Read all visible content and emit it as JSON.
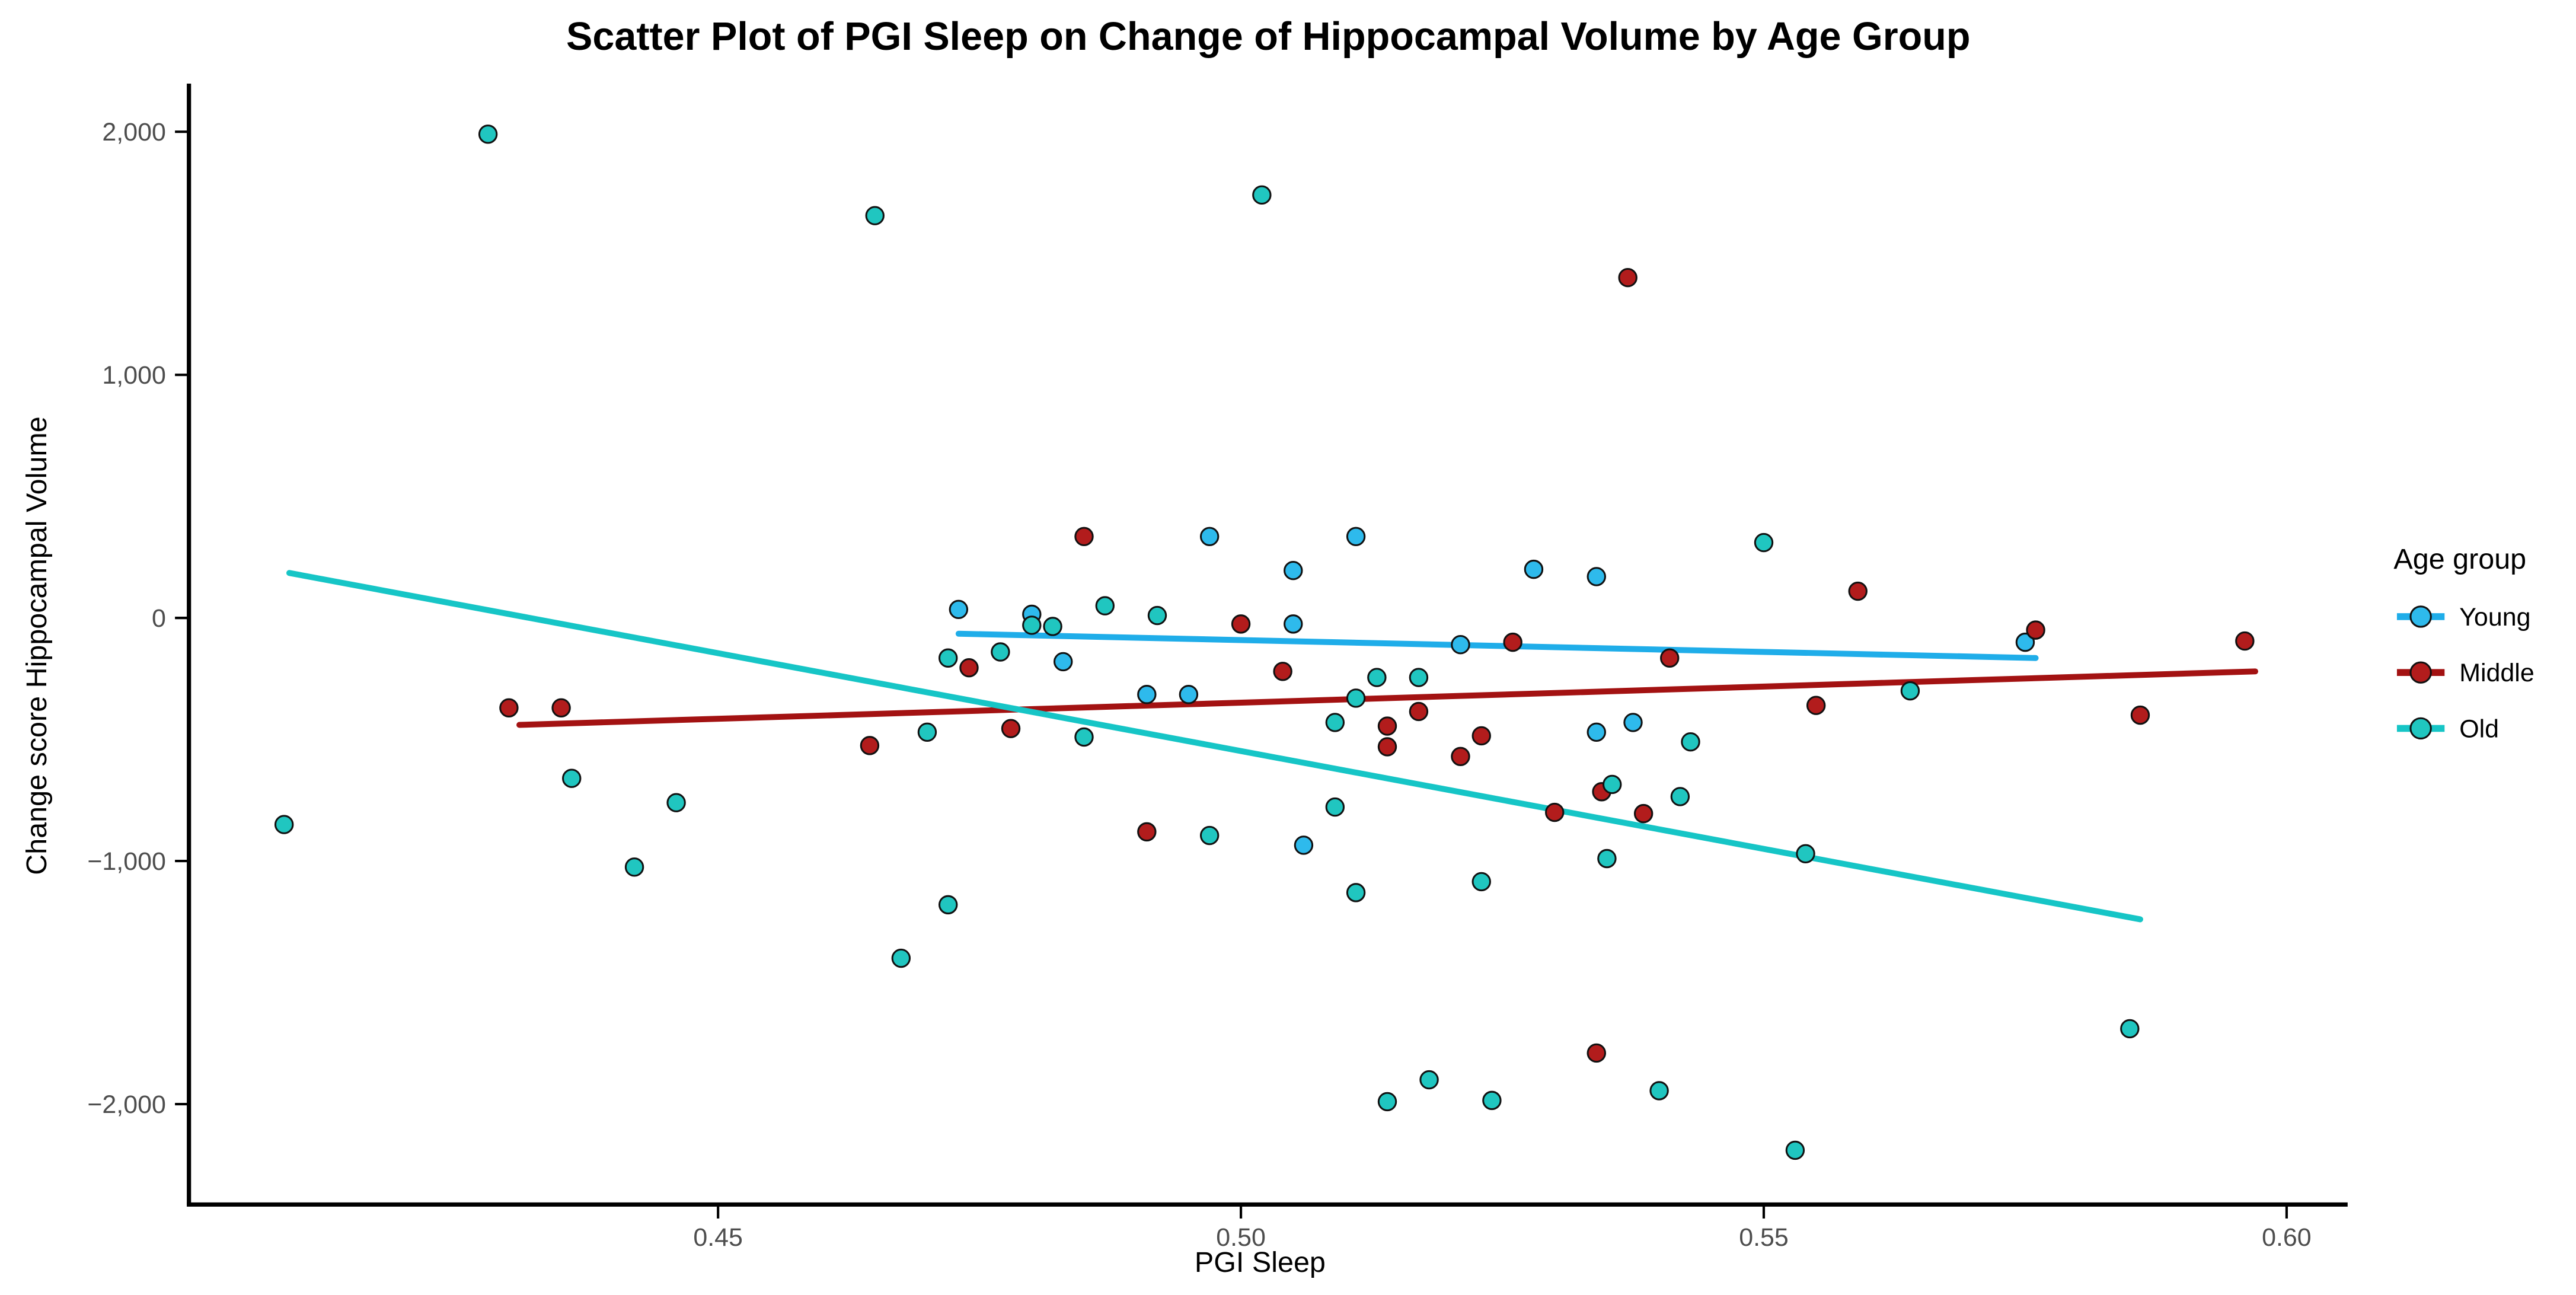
{
  "chart_data": {
    "type": "scatter",
    "title": "Scatter Plot of PGI Sleep on Change of Hippocampal Volume by Age Group",
    "xlabel": "PGI Sleep",
    "ylabel": "Change score Hippocampal Volume",
    "xlim": [
      0.3994,
      0.6045
    ],
    "ylim": [
      -2393,
      2171
    ],
    "grid": false,
    "x_ticks": {
      "values": [
        0.45,
        0.5,
        0.55,
        0.6
      ],
      "labels": [
        "0.45",
        "0.50",
        "0.55",
        "0.60"
      ]
    },
    "y_ticks": {
      "values": [
        2000,
        1000,
        0,
        -1000,
        -2000
      ],
      "labels": [
        "2,000",
        "1,000",
        "0",
        "−1,000",
        "−2,000"
      ]
    },
    "legend": {
      "title": "Age group",
      "position": "right",
      "entries": [
        "Young",
        "Middle",
        "Old"
      ]
    },
    "style": {
      "point_radius": 5.3,
      "point_outline": "#111111",
      "trend_width": 3.6,
      "axis_color": "#000000"
    },
    "series": [
      {
        "name": "Young",
        "point_color": "#2EBAEC",
        "line_color": "#1FADE9",
        "trend_line": {
          "x": [
            0.473,
            0.576
          ],
          "y": [
            -65,
            -165
          ]
        },
        "points": [
          [
            0.473,
            35
          ],
          [
            0.48,
            15
          ],
          [
            0.483,
            -180
          ],
          [
            0.491,
            -315
          ],
          [
            0.495,
            -315
          ],
          [
            0.497,
            335
          ],
          [
            0.505,
            195
          ],
          [
            0.505,
            -25
          ],
          [
            0.506,
            -935
          ],
          [
            0.511,
            335
          ],
          [
            0.521,
            -110
          ],
          [
            0.528,
            200
          ],
          [
            0.534,
            170
          ],
          [
            0.534,
            -470
          ],
          [
            0.5375,
            -430
          ],
          [
            0.575,
            -100
          ]
        ]
      },
      {
        "name": "Middle",
        "point_color": "#B21C1C",
        "line_color": "#A31212",
        "trend_line": {
          "x": [
            0.431,
            0.597
          ],
          "y": [
            -440,
            -220
          ]
        },
        "points": [
          [
            0.43,
            -370
          ],
          [
            0.435,
            -370
          ],
          [
            0.4645,
            -525
          ],
          [
            0.474,
            -205
          ],
          [
            0.478,
            -455
          ],
          [
            0.485,
            335
          ],
          [
            0.491,
            -880
          ],
          [
            0.5,
            -25
          ],
          [
            0.504,
            -220
          ],
          [
            0.514,
            -445
          ],
          [
            0.514,
            -530
          ],
          [
            0.517,
            -385
          ],
          [
            0.521,
            -570
          ],
          [
            0.523,
            -485
          ],
          [
            0.526,
            -100
          ],
          [
            0.53,
            -800
          ],
          [
            0.5345,
            -715
          ],
          [
            0.534,
            -1790
          ],
          [
            0.537,
            1400
          ],
          [
            0.5385,
            -805
          ],
          [
            0.541,
            -165
          ],
          [
            0.555,
            -360
          ],
          [
            0.559,
            110
          ],
          [
            0.576,
            -50
          ],
          [
            0.586,
            -400
          ],
          [
            0.596,
            -95
          ]
        ]
      },
      {
        "name": "Old",
        "point_color": "#20C6C0",
        "line_color": "#16C5C6",
        "trend_line": {
          "x": [
            0.409,
            0.586
          ],
          "y": [
            185,
            -1240
          ]
        },
        "points": [
          [
            0.428,
            1990
          ],
          [
            0.465,
            1655
          ],
          [
            0.502,
            1740
          ],
          [
            0.4085,
            -850
          ],
          [
            0.436,
            -660
          ],
          [
            0.446,
            -760
          ],
          [
            0.472,
            -165
          ],
          [
            0.477,
            -140
          ],
          [
            0.48,
            -30
          ],
          [
            0.482,
            -35
          ],
          [
            0.487,
            50
          ],
          [
            0.492,
            10
          ],
          [
            0.47,
            -470
          ],
          [
            0.485,
            -490
          ],
          [
            0.513,
            -245
          ],
          [
            0.517,
            -245
          ],
          [
            0.511,
            -330
          ],
          [
            0.509,
            -430
          ],
          [
            0.509,
            -778
          ],
          [
            0.497,
            -895
          ],
          [
            0.5355,
            -685
          ],
          [
            0.543,
            -510
          ],
          [
            0.542,
            -735
          ],
          [
            0.55,
            310
          ],
          [
            0.564,
            -300
          ],
          [
            0.535,
            -990
          ],
          [
            0.511,
            -1130
          ],
          [
            0.523,
            -1085
          ],
          [
            0.472,
            -1180
          ],
          [
            0.4675,
            -1400
          ],
          [
            0.442,
            -1025
          ],
          [
            0.514,
            -1990
          ],
          [
            0.518,
            -1900
          ],
          [
            0.524,
            -1985
          ],
          [
            0.554,
            -970
          ],
          [
            0.585,
            -1690
          ],
          [
            0.54,
            -1945
          ],
          [
            0.553,
            -2190
          ]
        ]
      }
    ]
  }
}
